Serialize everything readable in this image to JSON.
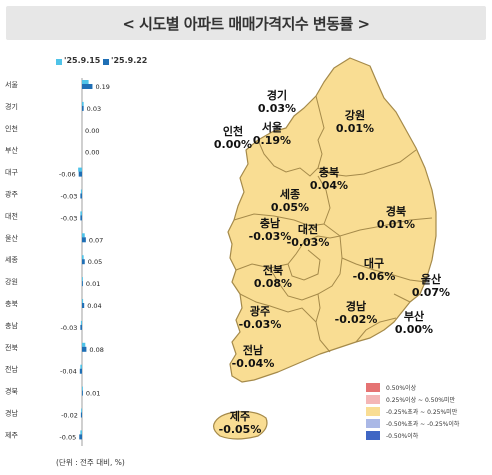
{
  "title": "< 시도별 아파트 매매가격지수 변동률 >",
  "legend": [
    {
      "label": "'25.9.15",
      "color": "#4fc3e8"
    },
    {
      "label": "'25.9.22",
      "color": "#1f6fb5"
    }
  ],
  "unit_note": "(단위 : 전주 대비, %)",
  "chart_data": {
    "type": "bar",
    "orientation": "horizontal",
    "categories": [
      "서울",
      "경기",
      "인천",
      "부산",
      "대구",
      "광주",
      "대전",
      "울산",
      "세종",
      "강원",
      "충북",
      "충남",
      "전북",
      "전남",
      "경북",
      "경남",
      "제주"
    ],
    "series": [
      {
        "name": "'25.9.15",
        "values": [
          0.12,
          0.03,
          0.0,
          0.0,
          -0.07,
          -0.02,
          -0.03,
          0.05,
          0.03,
          0.01,
          0.02,
          -0.02,
          0.06,
          -0.03,
          0.01,
          -0.01,
          -0.03
        ]
      },
      {
        "name": "'25.9.22",
        "values": [
          0.19,
          0.03,
          0.0,
          0.0,
          -0.06,
          -0.03,
          -0.03,
          0.07,
          0.05,
          0.01,
          0.04,
          -0.03,
          0.08,
          -0.04,
          0.01,
          -0.02,
          -0.05
        ]
      }
    ],
    "value_labels": [
      "0.19",
      "0.03",
      "0.00",
      "0.00",
      "-0.06",
      "-0.03",
      "-0.03",
      "0.07",
      "0.05",
      "0.01",
      "0.04",
      "-0.03",
      "0.08",
      "-0.04",
      "0.01",
      "-0.02",
      "-0.05"
    ],
    "colors": {
      "prev": "#4fc3e8",
      "curr": "#1f6fb5"
    }
  },
  "map": {
    "regions": [
      {
        "name": "경기",
        "value": "0.03%"
      },
      {
        "name": "강원",
        "value": "0.01%"
      },
      {
        "name": "인천",
        "value": "0.00%"
      },
      {
        "name": "서울",
        "value": "0.19%"
      },
      {
        "name": "충북",
        "value": "0.04%"
      },
      {
        "name": "세종",
        "value": "0.05%"
      },
      {
        "name": "경북",
        "value": "0.01%"
      },
      {
        "name": "충남",
        "value": "-0.03%"
      },
      {
        "name": "대전",
        "value": "-0.03%"
      },
      {
        "name": "전북",
        "value": "0.08%"
      },
      {
        "name": "대구",
        "value": "-0.06%"
      },
      {
        "name": "울산",
        "value": "0.07%"
      },
      {
        "name": "광주",
        "value": "-0.03%"
      },
      {
        "name": "경남",
        "value": "-0.02%"
      },
      {
        "name": "부산",
        "value": "0.00%"
      },
      {
        "name": "전남",
        "value": "-0.04%"
      },
      {
        "name": "제주",
        "value": "-0.05%"
      }
    ],
    "fill_color": "#f9dd93",
    "border_color": "#a58a4a"
  },
  "scale": [
    {
      "label": "0.50%이상",
      "color": "#e57373"
    },
    {
      "label": "0.25%이상 ~ 0.50%미만",
      "color": "#f4b6b6"
    },
    {
      "label": "-0.25%초과 ~ 0.25%미만",
      "color": "#f9dd93"
    },
    {
      "label": "-0.50%초과 ~ -0.25%이하",
      "color": "#aab8e6"
    },
    {
      "label": "-0.50%이하",
      "color": "#3f66c4"
    }
  ]
}
